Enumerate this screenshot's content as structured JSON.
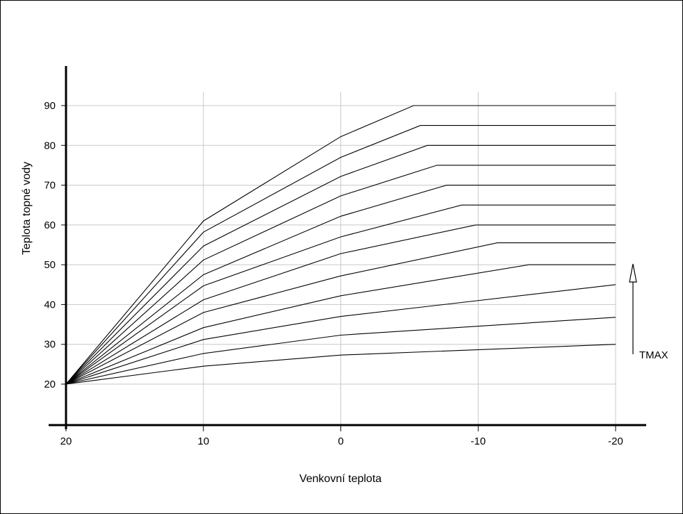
{
  "chart_data": {
    "type": "line",
    "title": "",
    "xlabel": "Venkovní teplota",
    "ylabel": "Teplota topné vody",
    "xlim": [
      20,
      -20
    ],
    "ylim": [
      10,
      100
    ],
    "x_ticks": [
      20,
      10,
      0,
      -10,
      -20
    ],
    "y_ticks": [
      20,
      30,
      40,
      50,
      60,
      70,
      80,
      90
    ],
    "grid": true,
    "annotation": "TMAX",
    "series": [
      {
        "points": [
          [
            20,
            20
          ],
          [
            10,
            61
          ],
          [
            0,
            82.2
          ],
          [
            -5.3,
            90
          ],
          [
            -20,
            90
          ]
        ]
      },
      {
        "points": [
          [
            20,
            20
          ],
          [
            10,
            58.2
          ],
          [
            0,
            77
          ],
          [
            -5.8,
            85
          ],
          [
            -20,
            85
          ]
        ]
      },
      {
        "points": [
          [
            20,
            20
          ],
          [
            10,
            54.7
          ],
          [
            0,
            72.2
          ],
          [
            -6.3,
            80
          ],
          [
            -20,
            80
          ]
        ]
      },
      {
        "points": [
          [
            20,
            20
          ],
          [
            10,
            51.2
          ],
          [
            0,
            67.3
          ],
          [
            -7,
            75
          ],
          [
            -20,
            75
          ]
        ]
      },
      {
        "points": [
          [
            20,
            20
          ],
          [
            10,
            47.5
          ],
          [
            0,
            62.2
          ],
          [
            -7.7,
            70
          ],
          [
            -20,
            70
          ]
        ]
      },
      {
        "points": [
          [
            20,
            20
          ],
          [
            10,
            44.7
          ],
          [
            0,
            57
          ],
          [
            -8.8,
            65
          ],
          [
            -20,
            65
          ]
        ]
      },
      {
        "points": [
          [
            20,
            20
          ],
          [
            10,
            41.2
          ],
          [
            0,
            52.8
          ],
          [
            -9.8,
            60
          ],
          [
            -20,
            60
          ]
        ]
      },
      {
        "points": [
          [
            20,
            20
          ],
          [
            10,
            38
          ],
          [
            0,
            47.2
          ],
          [
            -11.4,
            55.5
          ],
          [
            -20,
            55.5
          ]
        ]
      },
      {
        "points": [
          [
            20,
            20
          ],
          [
            10,
            34.2
          ],
          [
            0,
            42.2
          ],
          [
            -13.7,
            50
          ],
          [
            -20,
            50
          ]
        ]
      },
      {
        "points": [
          [
            20,
            20
          ],
          [
            10,
            31.2
          ],
          [
            0,
            37
          ],
          [
            -20,
            45
          ]
        ]
      },
      {
        "points": [
          [
            20,
            20
          ],
          [
            10,
            27.7
          ],
          [
            0,
            32.3
          ],
          [
            -20,
            36.8
          ]
        ]
      },
      {
        "points": [
          [
            20,
            20
          ],
          [
            10,
            24.5
          ],
          [
            0,
            27.3
          ],
          [
            -20,
            30
          ]
        ]
      }
    ]
  }
}
